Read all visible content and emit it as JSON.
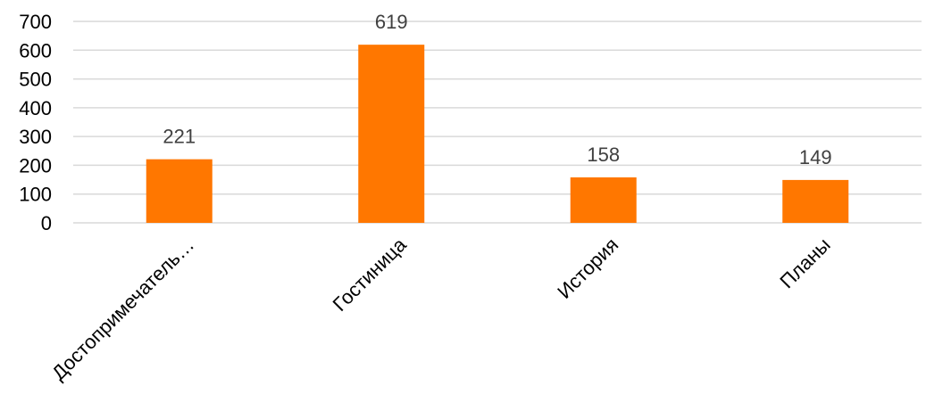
{
  "chart_data": {
    "type": "bar",
    "categories": [
      "Достопримечатель…",
      "Гостиница",
      "История",
      "Планы"
    ],
    "values": [
      221,
      619,
      158,
      149
    ],
    "data_labels": [
      "221",
      "619",
      "158",
      "149"
    ],
    "ylim": [
      0,
      700
    ],
    "yticks": [
      0,
      100,
      200,
      300,
      400,
      500,
      600,
      700
    ],
    "ytick_labels": [
      "0",
      "100",
      "200",
      "300",
      "400",
      "500",
      "600",
      "700"
    ],
    "title": "",
    "xlabel": "",
    "ylabel": "",
    "grid": true,
    "legend": "none",
    "bar_color": "#ff7700",
    "grid_color": "#d9d9d9"
  }
}
